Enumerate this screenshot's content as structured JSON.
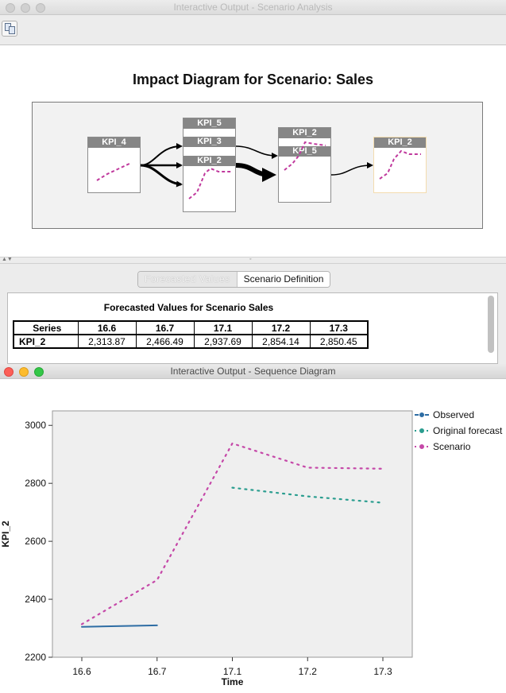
{
  "window1": {
    "title": "Interactive Output - Scenario Analysis",
    "diagram_title": "Impact Diagram for Scenario: Sales",
    "nodes": {
      "kpi4": "KPI_4",
      "kpi5a": "KPI_5",
      "kpi3": "KPI_3",
      "kpi2a": "KPI_2",
      "kpi2b": "KPI_2",
      "kpi5b": "KPI_5",
      "kpi2c": "KPI_2"
    },
    "tabs": [
      "Forecasted Values",
      "Scenario Definition"
    ],
    "table": {
      "title": "Forecasted Values for Scenario Sales",
      "headers": [
        "Series",
        "16.6",
        "16.7",
        "17.1",
        "17.2",
        "17.3"
      ],
      "rows": [
        [
          "KPI_2",
          "2,313.87",
          "2,466.49",
          "2,937.69",
          "2,854.14",
          "2,850.45"
        ]
      ]
    }
  },
  "window2": {
    "title": "Interactive Output - Sequence Diagram"
  },
  "colors": {
    "observed": "#2e6da4",
    "original_forecast": "#2a9d8f",
    "scenario": "#c548a8",
    "diagram_line": "#c0399d",
    "node_highlight": "#f3dcae"
  },
  "chart_data": {
    "type": "line",
    "xlabel": "Time",
    "ylabel": "KPI_2",
    "categories": [
      "16.6",
      "16.7",
      "17.1",
      "17.2",
      "17.3"
    ],
    "ylim": [
      2200,
      3050
    ],
    "yticks": [
      2200,
      2400,
      2600,
      2800,
      3000
    ],
    "grid": false,
    "legend_position": "top-right",
    "series": [
      {
        "name": "Observed",
        "style": "solid",
        "values": [
          2305,
          2310,
          null,
          null,
          null
        ]
      },
      {
        "name": "Original forecast",
        "style": "dotted",
        "values": [
          null,
          null,
          2785,
          2755,
          2733
        ]
      },
      {
        "name": "Scenario",
        "style": "dotted",
        "values": [
          2313.87,
          2466.49,
          2937.69,
          2854.14,
          2850.45
        ]
      }
    ]
  }
}
